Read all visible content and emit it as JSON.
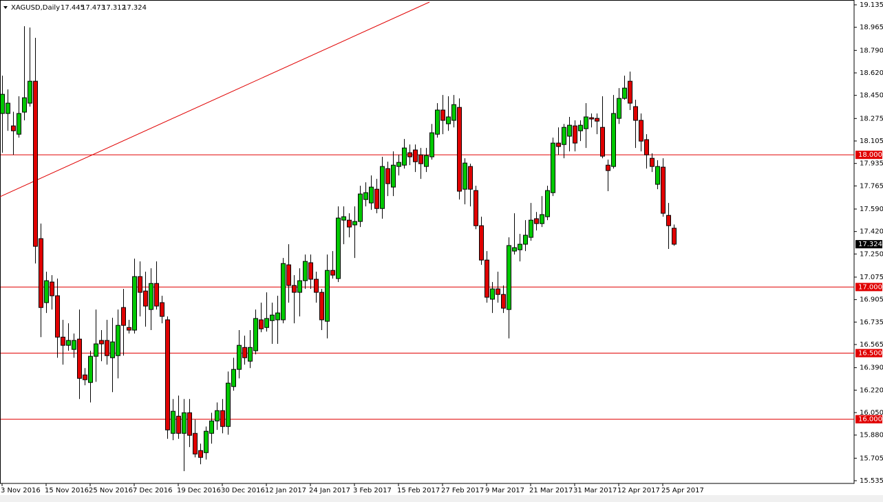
{
  "chart_data": {
    "type": "candlestick",
    "symbol": "XAGUSD,Daily",
    "categories": [
      "3 Nov 2016",
      null,
      null,
      null,
      null,
      null,
      null,
      null,
      "15 Nov 2016",
      null,
      null,
      null,
      null,
      null,
      null,
      null,
      "25 Nov 2016",
      null,
      null,
      null,
      null,
      null,
      null,
      null,
      "7 Dec 2016",
      null,
      null,
      null,
      null,
      null,
      null,
      null,
      "19 Dec 2016",
      null,
      null,
      null,
      null,
      null,
      null,
      null,
      "30 Dec 2016",
      null,
      null,
      null,
      null,
      null,
      null,
      null,
      "12 Jan 2017",
      null,
      null,
      null,
      null,
      null,
      null,
      null,
      "24 Jan 2017",
      null,
      null,
      null,
      null,
      null,
      null,
      null,
      "3 Feb 2017",
      null,
      null,
      null,
      null,
      null,
      null,
      null,
      "15 Feb 2017",
      null,
      null,
      null,
      null,
      null,
      null,
      null,
      "27 Feb 2017",
      null,
      null,
      null,
      null,
      null,
      null,
      null,
      "9 Mar 2017",
      null,
      null,
      null,
      null,
      null,
      null,
      null,
      "21 Mar 2017",
      null,
      null,
      null,
      null,
      null,
      null,
      null,
      "31 Mar 2017",
      null,
      null,
      null,
      null,
      null,
      null,
      null,
      "12 Apr 2017",
      null,
      null,
      null,
      null,
      null,
      null,
      null,
      "25 Apr 2017",
      null,
      null
    ],
    "series": {
      "open": [
        18.313,
        18.313,
        18.219,
        18.156,
        18.323,
        18.391,
        18.557,
        17.366,
        16.882,
        17.038,
        16.934,
        16.621,
        16.559,
        16.528,
        16.606,
        16.335,
        16.278,
        16.476,
        16.596,
        16.596,
        16.465,
        16.481,
        16.845,
        16.694,
        16.674,
        17.079,
        16.97,
        16.83,
        17.027,
        16.882,
        16.752,
        15.893,
        16.023,
        15.893,
        16.049,
        15.893,
        15.763,
        15.747,
        15.893,
        15.987,
        16.065,
        15.945,
        16.247,
        16.377,
        16.543,
        16.439,
        16.518,
        16.752,
        16.694,
        16.746,
        16.752,
        16.752,
        17.168,
        17.012,
        16.96,
        17.048,
        17.184,
        17.059,
        16.96,
        16.741,
        17.126,
        17.064,
        17.506,
        17.506,
        17.47,
        17.496,
        17.662,
        17.636,
        17.74,
        17.594,
        17.896,
        17.756,
        17.912,
        17.922,
        18.016,
        18.037,
        18.0,
        17.912,
        17.985,
        18.156,
        18.339,
        18.235,
        18.261,
        18.359,
        17.74,
        17.912,
        17.73,
        17.464,
        17.204,
        16.908,
        16.986,
        16.944,
        16.83,
        17.272,
        17.282,
        17.324,
        17.376,
        17.517,
        17.48,
        17.532,
        17.714,
        18.089,
        18.078,
        18.141,
        18.219,
        18.182,
        18.198,
        18.281,
        18.276,
        18.208,
        17.922,
        17.912,
        18.276,
        18.427,
        18.557,
        18.365,
        18.261,
        18.115,
        17.974,
        17.777,
        17.907,
        17.542,
        17.445
      ],
      "high": [
        18.599,
        18.495,
        18.326,
        18.443,
        18.973,
        18.963,
        18.885,
        17.48,
        17.116,
        17.09,
        17.064,
        16.752,
        16.726,
        16.648,
        16.83,
        16.387,
        16.518,
        16.83,
        16.674,
        16.752,
        16.767,
        16.83,
        16.986,
        16.752,
        17.215,
        17.194,
        17.116,
        17.142,
        17.194,
        16.934,
        16.778,
        16.153,
        16.179,
        16.153,
        16.153,
        15.997,
        15.815,
        15.945,
        16.049,
        16.127,
        16.153,
        16.361,
        16.465,
        16.674,
        16.632,
        16.674,
        16.83,
        16.882,
        16.96,
        16.882,
        16.934,
        17.22,
        17.324,
        17.09,
        17.142,
        17.246,
        17.246,
        17.116,
        16.986,
        17.246,
        17.272,
        17.61,
        17.61,
        17.558,
        17.61,
        17.766,
        17.792,
        17.844,
        17.818,
        17.985,
        17.948,
        18.026,
        18.0,
        18.12,
        18.078,
        18.078,
        18.052,
        18.052,
        18.234,
        18.391,
        18.453,
        18.443,
        18.453,
        18.427,
        17.974,
        17.933,
        17.766,
        17.532,
        17.272,
        17.038,
        17.116,
        17.012,
        17.376,
        17.558,
        17.402,
        17.506,
        17.636,
        17.568,
        17.688,
        17.766,
        18.13,
        18.208,
        18.234,
        18.287,
        18.261,
        18.261,
        18.391,
        18.313,
        18.313,
        18.443,
        17.964,
        18.453,
        18.505,
        18.599,
        18.63,
        18.417,
        18.313,
        18.156,
        18.011,
        17.959,
        17.974,
        17.636,
        17.473
      ],
      "low": [
        18.016,
        18.182,
        18.0,
        18.13,
        18.261,
        18.365,
        17.178,
        16.621,
        16.804,
        16.83,
        16.465,
        16.413,
        16.518,
        16.465,
        16.153,
        16.257,
        16.127,
        16.283,
        16.439,
        16.413,
        16.205,
        16.309,
        16.481,
        16.648,
        16.648,
        16.778,
        16.7,
        16.674,
        16.83,
        16.726,
        15.852,
        15.841,
        15.852,
        15.607,
        15.789,
        15.711,
        15.659,
        15.695,
        15.815,
        15.919,
        15.893,
        15.883,
        16.216,
        16.309,
        16.413,
        16.387,
        16.491,
        16.658,
        16.663,
        16.57,
        16.57,
        16.726,
        16.882,
        16.726,
        16.778,
        16.986,
        16.986,
        16.882,
        16.674,
        16.611,
        17.064,
        17.038,
        17.324,
        17.376,
        17.22,
        17.454,
        17.61,
        17.584,
        17.558,
        17.517,
        17.688,
        17.688,
        17.844,
        17.896,
        17.922,
        17.87,
        17.818,
        17.87,
        17.964,
        18.13,
        18.156,
        18.182,
        18.208,
        17.662,
        17.626,
        17.61,
        17.438,
        17.168,
        16.882,
        16.804,
        16.882,
        16.804,
        16.611,
        17.246,
        17.194,
        17.272,
        17.35,
        17.428,
        17.454,
        17.506,
        17.688,
        18.0,
        17.974,
        18.026,
        18.026,
        18.104,
        18.052,
        18.208,
        18.156,
        17.974,
        17.725,
        17.896,
        18.234,
        18.417,
        18.339,
        18.052,
        18.026,
        17.896,
        17.87,
        17.74,
        17.532,
        17.288,
        17.312
      ],
      "close": [
        18.458,
        18.391,
        18.182,
        18.313,
        18.432,
        18.557,
        17.308,
        16.845,
        17.048,
        16.934,
        16.621,
        16.559,
        16.596,
        16.596,
        16.309,
        16.299,
        16.476,
        16.57,
        16.57,
        16.481,
        16.585,
        16.71,
        16.71,
        16.674,
        17.079,
        16.96,
        16.856,
        17.027,
        16.856,
        16.778,
        15.919,
        16.06,
        15.893,
        16.049,
        15.878,
        15.737,
        15.711,
        15.909,
        15.987,
        16.065,
        15.945,
        16.273,
        16.377,
        16.559,
        16.465,
        16.543,
        16.762,
        16.684,
        16.762,
        16.788,
        16.804,
        17.178,
        17.012,
        16.96,
        17.048,
        17.194,
        17.059,
        16.96,
        16.752,
        17.126,
        17.09,
        17.522,
        17.532,
        17.454,
        17.496,
        17.704,
        17.714,
        17.756,
        17.594,
        17.912,
        17.782,
        17.922,
        17.943,
        18.052,
        17.985,
        17.948,
        17.933,
        17.995,
        18.167,
        18.339,
        18.261,
        18.287,
        18.38,
        17.725,
        17.938,
        17.74,
        17.464,
        17.204,
        16.923,
        16.986,
        16.944,
        16.84,
        17.314,
        17.298,
        17.324,
        17.392,
        17.506,
        17.48,
        17.548,
        17.73,
        18.089,
        18.063,
        18.208,
        18.224,
        18.089,
        18.224,
        18.287,
        18.271,
        18.255,
        17.99,
        17.881,
        18.313,
        18.427,
        18.505,
        18.391,
        18.261,
        18.104,
        18.0,
        17.912,
        17.912,
        17.558,
        17.464,
        17.324
      ]
    },
    "up_color": "#00c800",
    "down_color": "#e00000",
    "ylim": [
      15.535,
      19.135
    ],
    "yticks": [
      19.135,
      18.965,
      {
        "value": 18.79,
        "label": "18.790"
      },
      {
        "value": 18.62,
        "label": "18.620"
      },
      {
        "value": 18.45,
        "label": "18.450"
      },
      18.275,
      18.105,
      17.935,
      17.765,
      {
        "value": 17.59,
        "label": "17.590"
      },
      {
        "value": 17.42,
        "label": "17.420"
      },
      {
        "value": 17.25,
        "label": "17.250"
      },
      17.075,
      16.905,
      16.735,
      16.565,
      {
        "value": 16.39,
        "label": "16.390"
      },
      {
        "value": 16.22,
        "label": "16.220"
      },
      {
        "value": 16.05,
        "label": "16.050"
      },
      {
        "value": 15.88,
        "label": "15.880"
      },
      15.705,
      15.535
    ],
    "levels": [
      {
        "value": 18,
        "label": "18.000"
      },
      {
        "value": 17,
        "label": "17.000"
      },
      {
        "value": 16.5,
        "label": "16.500"
      },
      {
        "value": 16,
        "label": "16.000"
      }
    ],
    "level_color": "#e00000"
  }
}
